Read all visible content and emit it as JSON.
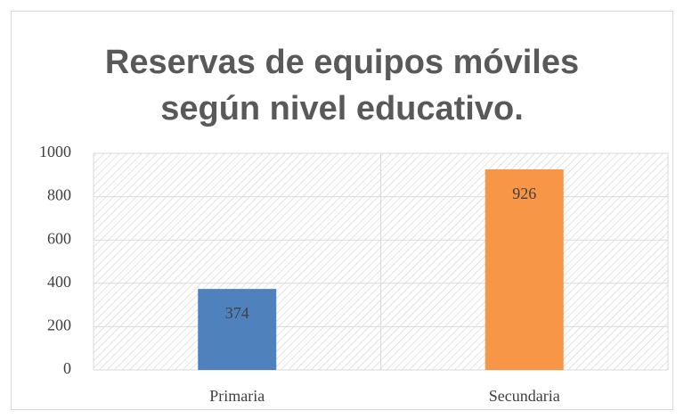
{
  "chart_data": {
    "type": "bar",
    "title": "Reservas de equipos móviles según nivel educativo.",
    "categories": [
      "Primaria",
      "Secundaria"
    ],
    "values": [
      374,
      926
    ],
    "colors": [
      "#4f81bd",
      "#f79646"
    ],
    "ylim": [
      0,
      1000
    ],
    "yticks": [
      0,
      200,
      400,
      600,
      800,
      1000
    ],
    "grid": true,
    "data_labels": true
  }
}
